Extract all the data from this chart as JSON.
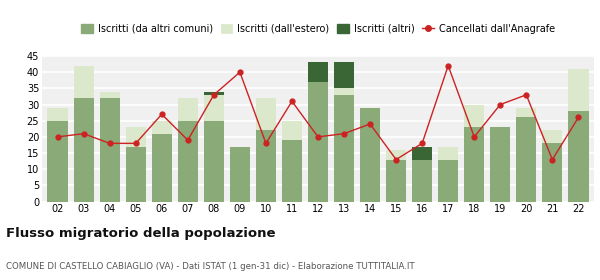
{
  "years": [
    "02",
    "03",
    "04",
    "05",
    "06",
    "07",
    "08",
    "09",
    "10",
    "11",
    "12",
    "13",
    "14",
    "15",
    "16",
    "17",
    "18",
    "19",
    "20",
    "21",
    "22"
  ],
  "iscritti_altri_comuni": [
    25,
    32,
    32,
    17,
    21,
    25,
    25,
    17,
    22,
    19,
    37,
    33,
    29,
    13,
    13,
    13,
    23,
    23,
    26,
    18,
    28
  ],
  "iscritti_estero": [
    4,
    10,
    2,
    6,
    4,
    7,
    8,
    0,
    10,
    6,
    0,
    2,
    0,
    3,
    0,
    4,
    7,
    0,
    3,
    4,
    13
  ],
  "iscritti_altri": [
    0,
    0,
    0,
    0,
    0,
    0,
    1,
    0,
    0,
    0,
    6,
    8,
    0,
    0,
    4,
    0,
    0,
    0,
    0,
    0,
    0
  ],
  "cancellati": [
    20,
    21,
    18,
    18,
    27,
    19,
    33,
    40,
    18,
    31,
    20,
    21,
    24,
    13,
    18,
    42,
    20,
    30,
    33,
    13,
    26
  ],
  "color_altri_comuni": "#8aaa78",
  "color_estero": "#dce8cb",
  "color_altri": "#3a6635",
  "color_cancellati": "#cc2222",
  "background_color": "#f0f0f0",
  "grid_color": "#ffffff",
  "ylim": [
    0,
    45
  ],
  "yticks": [
    0,
    5,
    10,
    15,
    20,
    25,
    30,
    35,
    40,
    45
  ],
  "title": "Flusso migratorio della popolazione",
  "subtitle": "COMUNE DI CASTELLO CABIAGLIO (VA) - Dati ISTAT (1 gen-31 dic) - Elaborazione TUTTITALIA.IT",
  "legend_labels": [
    "Iscritti (da altri comuni)",
    "Iscritti (dall'estero)",
    "Iscritti (altri)",
    "Cancellati dall'Anagrafe"
  ]
}
